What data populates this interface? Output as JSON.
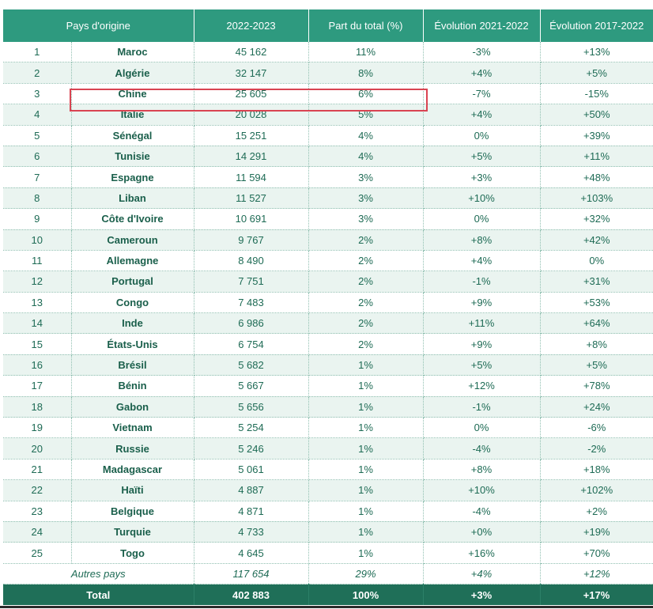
{
  "table": {
    "headers": [
      "Pays d'origine",
      "2022-2023",
      "Part du total (%)",
      "Évolution 2021-2022",
      "Évolution 2017-2022"
    ],
    "rows": [
      [
        "1",
        "Maroc",
        "45 162",
        "11%",
        "-3%",
        "+13%"
      ],
      [
        "2",
        "Algérie",
        "32 147",
        "8%",
        "+4%",
        "+5%"
      ],
      [
        "3",
        "Chine",
        "25 605",
        "6%",
        "-7%",
        "-15%"
      ],
      [
        "4",
        "Italie",
        "20 028",
        "5%",
        "+4%",
        "+50%"
      ],
      [
        "5",
        "Sénégal",
        "15 251",
        "4%",
        "0%",
        "+39%"
      ],
      [
        "6",
        "Tunisie",
        "14 291",
        "4%",
        "+5%",
        "+11%"
      ],
      [
        "7",
        "Espagne",
        "11 594",
        "3%",
        "+3%",
        "+48%"
      ],
      [
        "8",
        "Liban",
        "11 527",
        "3%",
        "+10%",
        "+103%"
      ],
      [
        "9",
        "Côte d'Ivoire",
        "10 691",
        "3%",
        "0%",
        "+32%"
      ],
      [
        "10",
        "Cameroun",
        "9 767",
        "2%",
        "+8%",
        "+42%"
      ],
      [
        "11",
        "Allemagne",
        "8 490",
        "2%",
        "+4%",
        "0%"
      ],
      [
        "12",
        "Portugal",
        "7 751",
        "2%",
        "-1%",
        "+31%"
      ],
      [
        "13",
        "Congo",
        "7 483",
        "2%",
        "+9%",
        "+53%"
      ],
      [
        "14",
        "Inde",
        "6 986",
        "2%",
        "+11%",
        "+64%"
      ],
      [
        "15",
        "États-Unis",
        "6 754",
        "2%",
        "+9%",
        "+8%"
      ],
      [
        "16",
        "Brésil",
        "5 682",
        "1%",
        "+5%",
        "+5%"
      ],
      [
        "17",
        "Bénin",
        "5 667",
        "1%",
        "+12%",
        "+78%"
      ],
      [
        "18",
        "Gabon",
        "5 656",
        "1%",
        "-1%",
        "+24%"
      ],
      [
        "19",
        "Vietnam",
        "5 254",
        "1%",
        "0%",
        "-6%"
      ],
      [
        "20",
        "Russie",
        "5 246",
        "1%",
        "-4%",
        "-2%"
      ],
      [
        "21",
        "Madagascar",
        "5 061",
        "1%",
        "+8%",
        "+18%"
      ],
      [
        "22",
        "Haïti",
        "4 887",
        "1%",
        "+10%",
        "+102%"
      ],
      [
        "23",
        "Belgique",
        "4 871",
        "1%",
        "-4%",
        "+2%"
      ],
      [
        "24",
        "Turquie",
        "4 733",
        "1%",
        "+0%",
        "+19%"
      ],
      [
        "25",
        "Togo",
        "4 645",
        "1%",
        "+16%",
        "+70%"
      ]
    ],
    "others": [
      "Autres pays",
      "117 654",
      "29%",
      "+4%",
      "+12%"
    ],
    "total": [
      "Total",
      "402 883",
      "100%",
      "+3%",
      "+17%"
    ]
  },
  "highlight_row_index": 2,
  "colors": {
    "header": "#2e9a7f",
    "total": "#1f6f58",
    "text": "#1e6b55",
    "highlight": "#d94452"
  }
}
